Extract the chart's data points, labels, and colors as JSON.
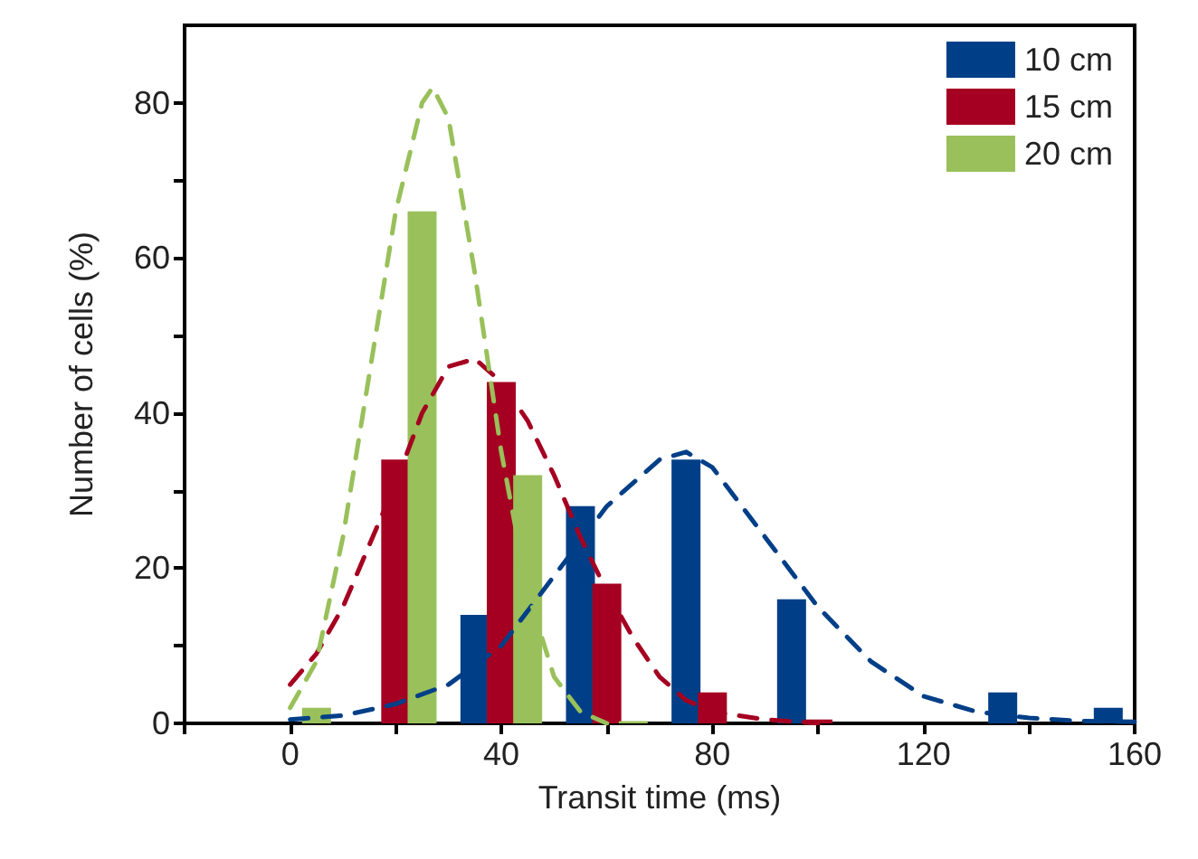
{
  "chart_data": {
    "type": "bar",
    "xlabel": "Transit time (ms)",
    "ylabel": "Number of cells (%)",
    "xlim": [
      -20,
      160
    ],
    "xticks": [
      {
        "value": -20,
        "label": null
      },
      0,
      {
        "value": 20,
        "label": null
      },
      40,
      {
        "value": 60,
        "label": null
      },
      80,
      {
        "value": 100,
        "label": null
      },
      120,
      {
        "value": 140,
        "label": null
      },
      160
    ],
    "ylim": [
      0,
      90
    ],
    "yticks": [
      0,
      {
        "value": 10,
        "label": null
      },
      20,
      {
        "value": 30,
        "label": null
      },
      40,
      {
        "value": 50,
        "label": null
      },
      60,
      {
        "value": 70,
        "label": null
      },
      80
    ],
    "legend": "top right",
    "series": [
      {
        "name": "10 cm",
        "color": "#003f87",
        "x": [
          35,
          55,
          75,
          95,
          135,
          155
        ],
        "values": [
          14,
          28,
          34,
          16,
          4,
          2
        ]
      },
      {
        "name": "15 cm",
        "color": "#a50021",
        "x": [
          20,
          40,
          60,
          80,
          100
        ],
        "values": [
          34,
          44,
          18,
          4,
          0.5
        ]
      },
      {
        "name": "20 cm",
        "color": "#99c05a",
        "x": [
          5,
          25,
          45,
          65
        ],
        "values": [
          2,
          66,
          32,
          0.3
        ]
      },
      {
        "type": "line",
        "line_style": "dashed",
        "marker": "none",
        "color": "#003f87",
        "x": [
          0,
          10,
          20,
          30,
          40,
          50,
          60,
          70,
          75,
          80,
          90,
          100,
          110,
          120,
          130,
          140,
          150,
          160
        ],
        "values": [
          0.5,
          1,
          2.5,
          5,
          10,
          19,
          28,
          34,
          35,
          33,
          24,
          15,
          8,
          3.5,
          1.5,
          0.7,
          0.3,
          0.2
        ]
      },
      {
        "type": "line",
        "line_style": "dashed",
        "marker": "none",
        "color": "#a50021",
        "x": [
          0,
          5,
          10,
          15,
          20,
          25,
          30,
          35,
          40,
          45,
          50,
          55,
          60,
          65,
          70,
          75,
          80,
          90,
          100
        ],
        "values": [
          5,
          9,
          15,
          23,
          31,
          40,
          46,
          47,
          44,
          39,
          32,
          24,
          17,
          11,
          6,
          3,
          1.5,
          0.5,
          0
        ]
      },
      {
        "type": "line",
        "line_style": "dashed",
        "marker": "none",
        "color": "#99c05a",
        "x": [
          0,
          5,
          10,
          15,
          20,
          25,
          27,
          30,
          35,
          40,
          45,
          50,
          55,
          60
        ],
        "values": [
          2,
          8,
          24,
          45,
          66,
          80,
          82,
          78,
          58,
          35,
          17,
          6,
          1.5,
          0
        ]
      }
    ]
  }
}
